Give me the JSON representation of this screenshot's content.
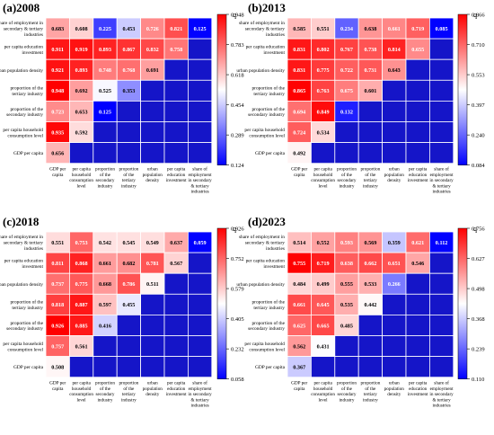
{
  "chart_data": [
    {
      "type": "heatmap",
      "title": "(a)2008",
      "legend_label": "q",
      "row_labels": [
        "share of employment in secondary & tertiary industries",
        "per capita education investment",
        "urban population density",
        "proportion of the tertiary industry",
        "proportion of the secondary industry",
        "per capita household consumption level",
        "GDP per capita"
      ],
      "col_labels": [
        "GDP per capita",
        "per capita household consumption level",
        "proportion of the secondary industry",
        "proportion of the tertiary industry",
        "urban population density",
        "per capita education investment",
        "share of employment in secondary & tertiary industries"
      ],
      "values": [
        [
          0.683,
          0.608,
          0.225,
          0.453,
          0.726,
          0.821,
          0.125
        ],
        [
          0.911,
          0.919,
          0.893,
          0.867,
          0.832,
          0.758,
          null
        ],
        [
          0.921,
          0.893,
          0.748,
          0.768,
          0.691,
          null,
          null
        ],
        [
          0.948,
          0.692,
          0.525,
          0.353,
          null,
          null,
          null
        ],
        [
          0.723,
          0.653,
          0.125,
          null,
          null,
          null,
          null
        ],
        [
          0.935,
          0.592,
          null,
          null,
          null,
          null,
          null
        ],
        [
          0.656,
          null,
          null,
          null,
          null,
          null,
          null
        ]
      ],
      "colorbar_ticks": [
        "0.948",
        "0.783",
        "0.618",
        "0.454",
        "0.289",
        "0.124"
      ],
      "vmin": 0.124,
      "vmax": 0.948
    },
    {
      "type": "heatmap",
      "title": "(b)2013",
      "legend_label": "q",
      "row_labels": [
        "share of employment in secondary & tertiary industries",
        "per capita education investment",
        "urban population density",
        "proportion of the tertiary industry",
        "proportion of the secondary industry",
        "per capita household consumption level",
        "GDP per capita"
      ],
      "col_labels": [
        "GDP per capita",
        "per capita household consumption level",
        "proportion of the secondary industry",
        "proportion of the tertiary industry",
        "urban population density",
        "per capita education investment",
        "share of employment in secondary & tertiary industries"
      ],
      "values": [
        [
          0.585,
          0.551,
          0.234,
          0.638,
          0.661,
          0.719,
          0.085
        ],
        [
          0.831,
          0.802,
          0.767,
          0.738,
          0.814,
          0.655,
          null
        ],
        [
          0.831,
          0.775,
          0.722,
          0.731,
          0.643,
          null,
          null
        ],
        [
          0.865,
          0.763,
          0.675,
          0.601,
          null,
          null,
          null
        ],
        [
          0.694,
          0.849,
          0.132,
          null,
          null,
          null,
          null
        ],
        [
          0.724,
          0.534,
          null,
          null,
          null,
          null,
          null
        ],
        [
          0.492,
          null,
          null,
          null,
          null,
          null,
          null
        ]
      ],
      "colorbar_ticks": [
        "0.866",
        "0.710",
        "0.553",
        "0.397",
        "0.240",
        "0.084"
      ],
      "vmin": 0.084,
      "vmax": 0.866
    },
    {
      "type": "heatmap",
      "title": "(c)2018",
      "legend_label": "q",
      "row_labels": [
        "share of employment in secondary & tertiary industries",
        "per capita education investment",
        "urban population density",
        "proportion of the tertiary industry",
        "proportion of the secondary industry",
        "per capita household consumption level",
        "GDP per capita"
      ],
      "col_labels": [
        "GDP per capita",
        "per capita household consumption level",
        "proportion of the secondary industry",
        "proportion of the tertiary industry",
        "urban population density",
        "per capita education investment",
        "share of employment in secondary & tertiary industries"
      ],
      "values": [
        [
          0.551,
          0.753,
          0.542,
          0.545,
          0.549,
          0.637,
          0.059
        ],
        [
          0.811,
          0.868,
          0.661,
          0.682,
          0.781,
          0.567,
          null
        ],
        [
          0.737,
          0.775,
          0.668,
          0.786,
          0.511,
          null,
          null
        ],
        [
          0.818,
          0.887,
          0.597,
          0.455,
          null,
          null,
          null
        ],
        [
          0.926,
          0.885,
          0.416,
          null,
          null,
          null,
          null
        ],
        [
          0.757,
          0.561,
          null,
          null,
          null,
          null,
          null
        ],
        [
          0.508,
          null,
          null,
          null,
          null,
          null,
          null
        ]
      ],
      "colorbar_ticks": [
        "0.926",
        "0.752",
        "0.579",
        "0.405",
        "0.232",
        "0.058"
      ],
      "vmin": 0.058,
      "vmax": 0.926
    },
    {
      "type": "heatmap",
      "title": "(d)2023",
      "legend_label": "q",
      "row_labels": [
        "share of employment in secondary & tertiary industries",
        "per capita education investment",
        "urban population density",
        "proportion of the tertiary industry",
        "proportion of the secondary industry",
        "per capita household consumption level",
        "GDP per capita"
      ],
      "col_labels": [
        "GDP per capita",
        "per capita household consumption level",
        "proportion of the secondary industry",
        "proportion of the tertiary industry",
        "urban population density",
        "per capita education investment",
        "share of employment in secondary & tertiary industries"
      ],
      "values": [
        [
          0.514,
          0.552,
          0.593,
          0.569,
          0.359,
          0.621,
          0.112
        ],
        [
          0.755,
          0.719,
          0.638,
          0.662,
          0.651,
          0.546,
          null
        ],
        [
          0.484,
          0.499,
          0.555,
          0.533,
          0.266,
          null,
          null
        ],
        [
          0.661,
          0.645,
          0.535,
          0.442,
          null,
          null,
          null
        ],
        [
          0.625,
          0.665,
          0.485,
          null,
          null,
          null,
          null
        ],
        [
          0.562,
          0.431,
          null,
          null,
          null,
          null,
          null
        ],
        [
          0.367,
          null,
          null,
          null,
          null,
          null,
          null
        ]
      ],
      "colorbar_ticks": [
        "0.756",
        "0.627",
        "0.498",
        "0.368",
        "0.239",
        "0.110"
      ],
      "vmin": 0.11,
      "vmax": 0.756
    }
  ],
  "colors": {
    "low": "#0000ff",
    "mid": "#ffffff",
    "high": "#ff0000",
    "empty_cell": "#1515c8",
    "grid_line": "#ffffff"
  }
}
